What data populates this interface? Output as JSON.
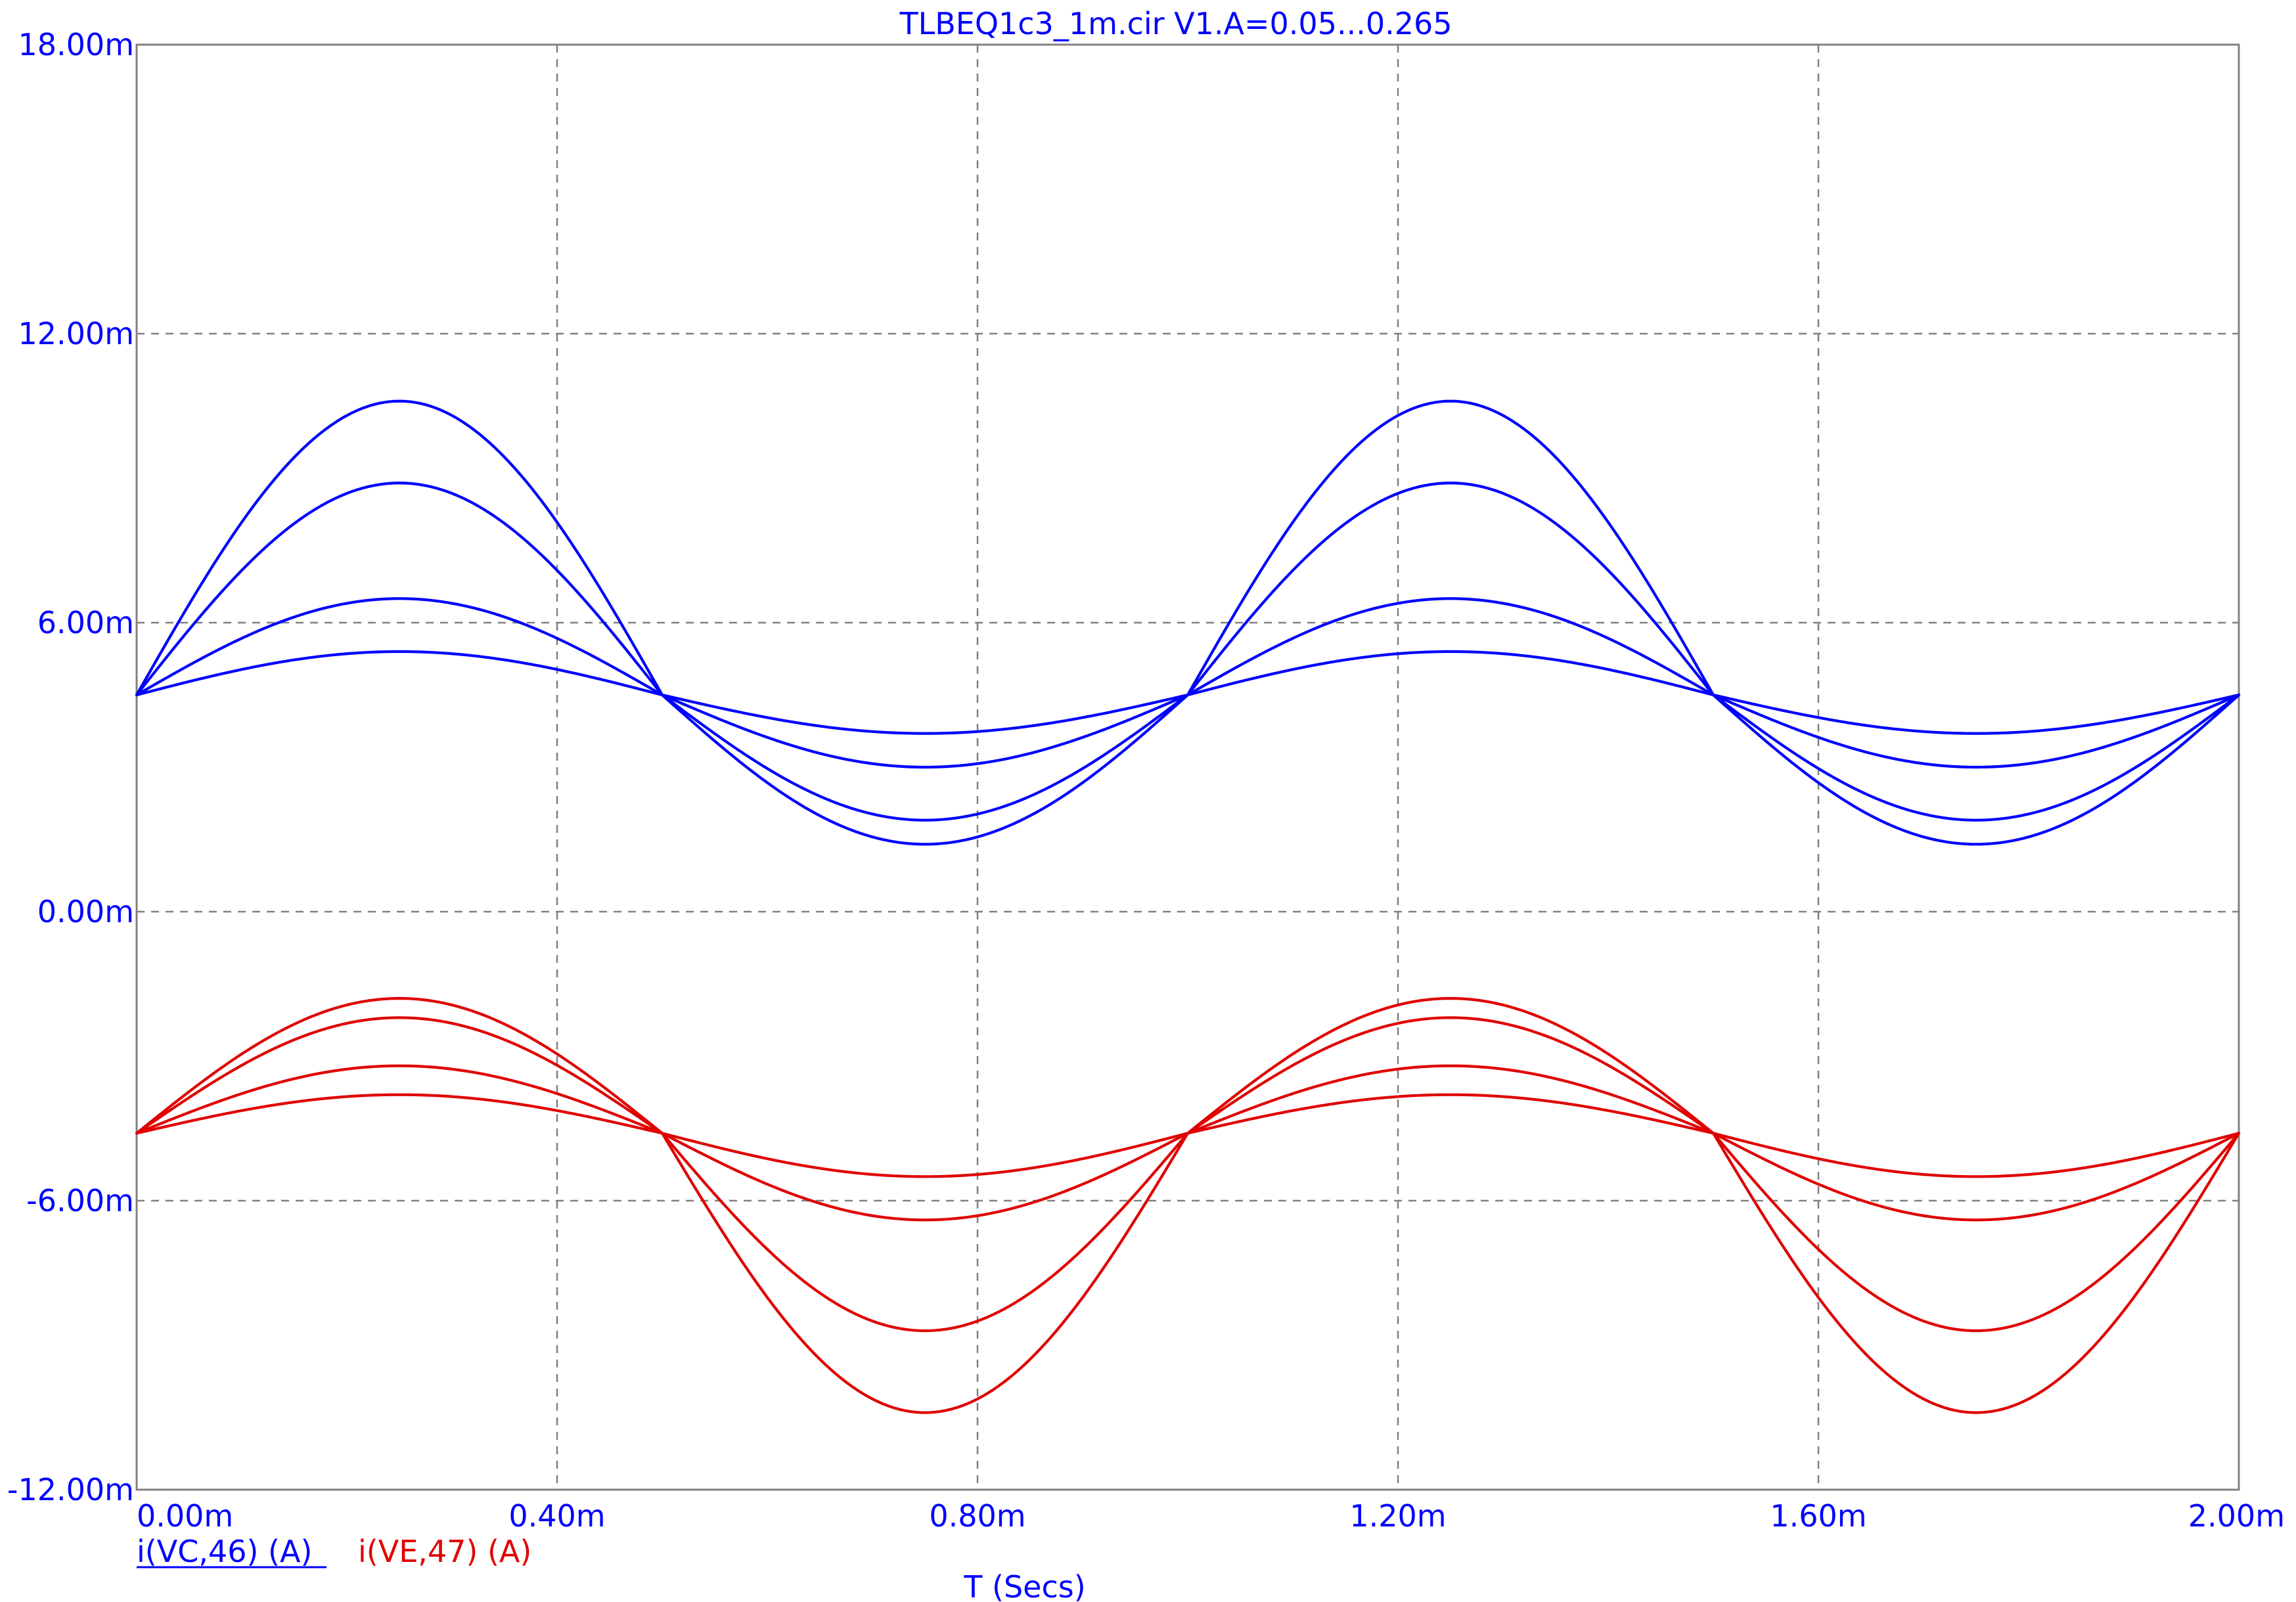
{
  "chart_data": {
    "type": "line",
    "title": "TLBEQ1c3_1m.cir V1.A=0.05...0.265",
    "xlabel": "T (Secs)",
    "ylabel": "",
    "x_unit": "s",
    "y_unit": "A",
    "xlim": [
      0,
      0.002
    ],
    "ylim": [
      -0.012,
      0.018
    ],
    "x_ticks": [
      {
        "value": 0.0,
        "label": "0.00m"
      },
      {
        "value": 0.0004,
        "label": "0.40m"
      },
      {
        "value": 0.0008,
        "label": "0.80m"
      },
      {
        "value": 0.0012,
        "label": "1.20m"
      },
      {
        "value": 0.0016,
        "label": "1.60m"
      },
      {
        "value": 0.002,
        "label": "2.00m"
      }
    ],
    "y_ticks": [
      {
        "value": 0.018,
        "label": "18.00m"
      },
      {
        "value": 0.012,
        "label": "12.00m"
      },
      {
        "value": 0.006,
        "label": "6.00m"
      },
      {
        "value": 0.0,
        "label": "0.00m"
      },
      {
        "value": -0.006,
        "label": "-6.00m"
      },
      {
        "value": -0.012,
        "label": "-12.00m"
      }
    ],
    "grid": true,
    "legend_position": "bottom-left",
    "waveform": "sine",
    "period": 0.001,
    "x_samples": [
      0,
      0.0001,
      0.0002,
      0.00025,
      0.0003,
      0.0004,
      0.0005,
      0.0006,
      0.0007,
      0.00075,
      0.0008,
      0.0009,
      0.001,
      0.0011,
      0.0012,
      0.00125,
      0.0013,
      0.0014,
      0.0015,
      0.0016,
      0.0017,
      0.00175,
      0.0018,
      0.0019,
      0.002
    ],
    "series": [
      {
        "name": "i(VC,46) (A)",
        "color": "#0000ff",
        "underlined": true,
        "traces": [
          {
            "offset": 0.0045,
            "pos_peak": 0.0054,
            "neg_peak": 0.0037
          },
          {
            "offset": 0.0045,
            "pos_peak": 0.0065,
            "neg_peak": 0.003
          },
          {
            "offset": 0.0045,
            "pos_peak": 0.0089,
            "neg_peak": 0.0019
          },
          {
            "offset": 0.0045,
            "pos_peak": 0.0106,
            "neg_peak": 0.0014
          }
        ]
      },
      {
        "name": "i(VE,47) (A)",
        "color": "#e00000",
        "underlined": false,
        "traces": [
          {
            "offset": -0.0046,
            "pos_peak": -0.0038,
            "neg_peak": -0.0055
          },
          {
            "offset": -0.0046,
            "pos_peak": -0.0032,
            "neg_peak": -0.0064
          },
          {
            "offset": -0.0046,
            "pos_peak": -0.0022,
            "neg_peak": -0.0087
          },
          {
            "offset": -0.0046,
            "pos_peak": -0.0018,
            "neg_peak": -0.0104
          }
        ]
      }
    ]
  }
}
